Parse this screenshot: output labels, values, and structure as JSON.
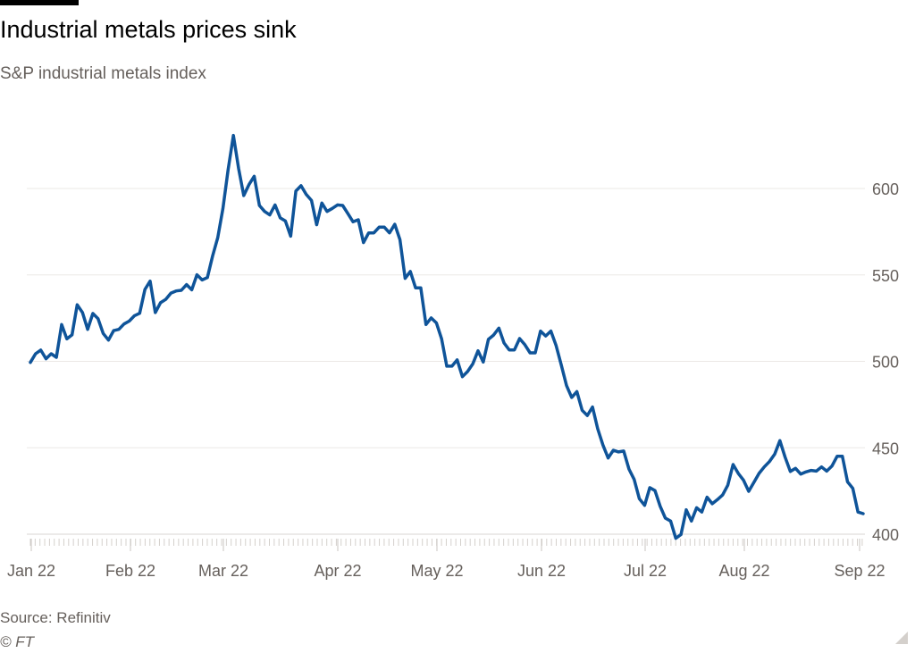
{
  "chart_data": {
    "type": "line",
    "title": "Industrial metals prices sink",
    "subtitle": "S&P industrial metals index",
    "xlabel": "",
    "ylabel": "",
    "x_range": [
      "2022-01-03",
      "2022-09-01"
    ],
    "x_ticks": [
      "Jan 22",
      "Feb 22",
      "Mar 22",
      "Apr 22",
      "May 22",
      "Jun 22",
      "Jul 22",
      "Aug 22",
      "Sep 22"
    ],
    "y_ticks": [
      400,
      450,
      500,
      550,
      600
    ],
    "ylim": [
      400,
      630
    ],
    "grid": true,
    "axis_position": "right",
    "line_color": "#0f5499",
    "series": [
      {
        "name": "S&P industrial metals index",
        "values": [
          499.4,
          504.4,
          506.5,
          501.5,
          504.4,
          502.3,
          521.3,
          513.0,
          515.3,
          532.7,
          528.2,
          518.5,
          527.7,
          524.7,
          516.1,
          512.3,
          517.8,
          518.5,
          521.6,
          523.3,
          526.4,
          527.8,
          541.6,
          546.4,
          528.2,
          533.9,
          535.8,
          539.5,
          540.7,
          541.1,
          544.4,
          541.4,
          550.1,
          547.1,
          548.5,
          560.9,
          571.6,
          588.5,
          610.9,
          630.7,
          611.7,
          595.9,
          602.2,
          607.1,
          590.2,
          586.7,
          584.7,
          590.5,
          583.0,
          581.2,
          572.4,
          598.5,
          601.6,
          596.6,
          593.1,
          579.0,
          591.6,
          586.7,
          588.5,
          590.5,
          590.2,
          585.5,
          580.7,
          581.9,
          568.7,
          574.3,
          574.3,
          577.6,
          577.6,
          574.3,
          579.3,
          570.4,
          548.0,
          552.0,
          542.5,
          542.5,
          521.3,
          525.1,
          522.2,
          513.0,
          497.2,
          497.2,
          500.9,
          491.1,
          494.1,
          498.5,
          506.1,
          499.6,
          512.7,
          515.2,
          519.2,
          510.6,
          506.6,
          506.6,
          513.2,
          509.6,
          504.9,
          504.9,
          517.5,
          514.7,
          517.5,
          509.2,
          498.0,
          486.0,
          479.1,
          482.5,
          471.7,
          468.7,
          473.6,
          461.0,
          451.5,
          444.1,
          448.6,
          447.6,
          448.1,
          437.7,
          431.7,
          420.5,
          416.7,
          426.9,
          425.2,
          416.2,
          409.3,
          407.6,
          397.6,
          399.8,
          414.1,
          407.6,
          415.3,
          412.8,
          421.4,
          417.6,
          420.0,
          422.7,
          428.3,
          440.3,
          435.2,
          431.3,
          424.8,
          430.0,
          435.2,
          438.9,
          442.0,
          446.3,
          454.1,
          444.6,
          436.3,
          438.1,
          434.8,
          436.0,
          436.9,
          436.5,
          438.9,
          436.5,
          439.4,
          445.1,
          445.1,
          430.3,
          426.5,
          412.8,
          411.9
        ]
      }
    ]
  },
  "footer": {
    "source": "Source: Refinitiv",
    "copyright": "© FT"
  }
}
